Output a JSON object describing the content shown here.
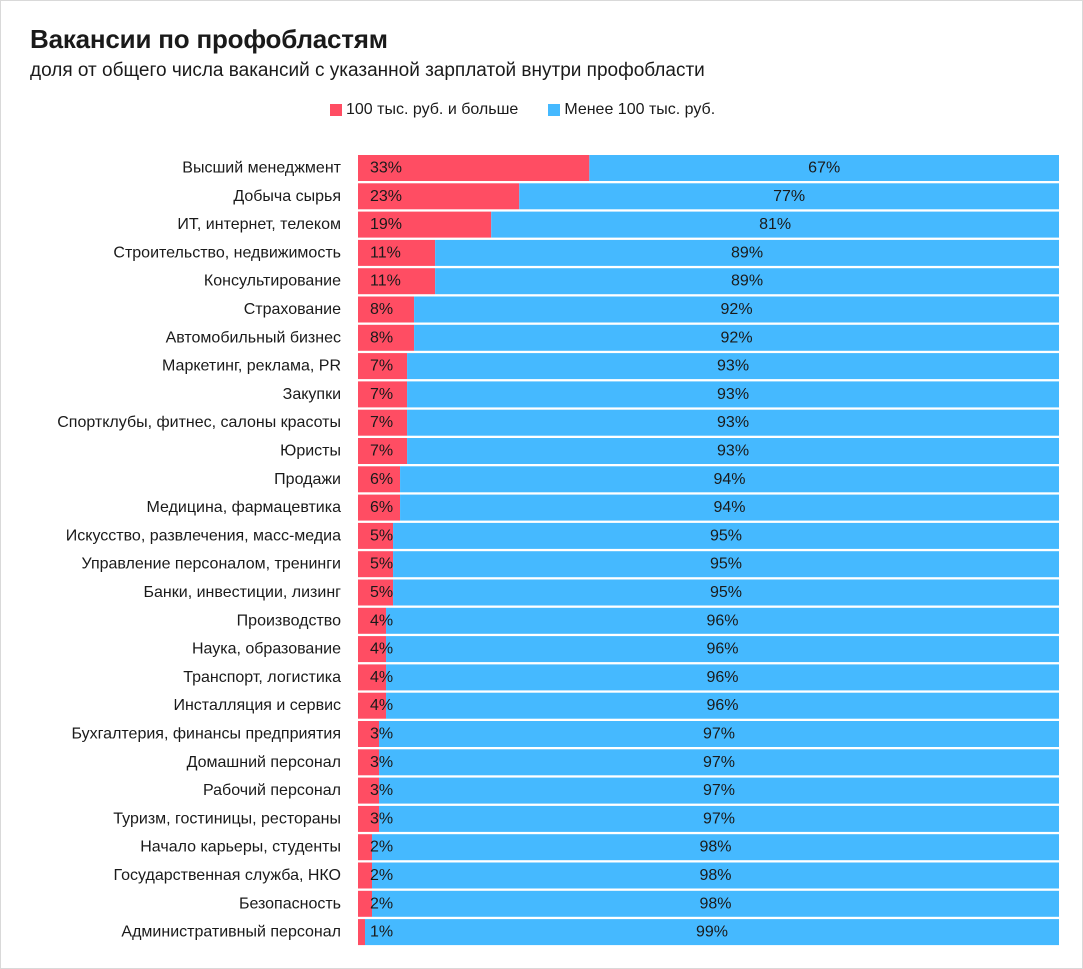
{
  "header": {
    "title": "Вакансии по профобластям",
    "subtitle": "доля от общего числа вакансий с указанной зарплатой внутри профобласти"
  },
  "legend": {
    "items": [
      {
        "label": "100 тыс. руб. и больше",
        "color": "#ff4d63"
      },
      {
        "label": "Менее 100 тыс. руб.",
        "color": "#45b9ff"
      }
    ]
  },
  "chart_data": {
    "type": "bar",
    "orientation": "horizontal",
    "stacked": true,
    "normalized_to": 100,
    "title": "Вакансии по профобластям",
    "subtitle": "доля от общего числа вакансий с указанной зарплатой внутри профобласти",
    "legend_position": "top",
    "grid": false,
    "xlim": [
      0,
      100
    ],
    "categories": [
      "Высший менеджмент",
      "Добыча сырья",
      "ИТ, интернет, телеком",
      "Строительство, недвижимость",
      "Консультирование",
      "Страхование",
      "Автомобильный бизнес",
      "Маркетинг, реклама, PR",
      "Закупки",
      "Спортклубы, фитнес, салоны красоты",
      "Юристы",
      "Продажи",
      "Медицина, фармацевтика",
      "Искусство, развлечения, масс-медиа",
      "Управление персоналом, тренинги",
      "Банки, инвестиции, лизинг",
      "Производство",
      "Наука, образование",
      "Транспорт, логистика",
      "Инсталляция и сервис",
      "Бухгалтерия, финансы предприятия",
      "Домашний персонал",
      "Рабочий персонал",
      "Туризм, гостиницы, рестораны",
      "Начало карьеры, студенты",
      "Государственная служба, НКО",
      "Безопасность",
      "Административный персонал"
    ],
    "series": [
      {
        "name": "100 тыс. руб. и больше",
        "color": "#ff4d63",
        "values": [
          33,
          23,
          19,
          11,
          11,
          8,
          8,
          7,
          7,
          7,
          7,
          6,
          6,
          5,
          5,
          5,
          4,
          4,
          4,
          4,
          3,
          3,
          3,
          3,
          2,
          2,
          2,
          1
        ],
        "labels": [
          "33%",
          "23%",
          "19%",
          "11%",
          "11%",
          "8%",
          "8%",
          "7%",
          "7%",
          "7%",
          "7%",
          "6%",
          "6%",
          "5%",
          "5%",
          "5%",
          "4%",
          "4%",
          "4%",
          "4%",
          "3%",
          "3%",
          "3%",
          "3%",
          "2%",
          "2%",
          "2%",
          "1%"
        ]
      },
      {
        "name": "Менее 100 тыс. руб.",
        "color": "#45b9ff",
        "values": [
          67,
          77,
          81,
          89,
          89,
          92,
          92,
          93,
          93,
          93,
          93,
          94,
          94,
          95,
          95,
          95,
          96,
          96,
          96,
          96,
          97,
          97,
          97,
          97,
          98,
          98,
          98,
          99
        ],
        "labels": [
          "67%",
          "77%",
          "81%",
          "89%",
          "89%",
          "92%",
          "92%",
          "93%",
          "93%",
          "93%",
          "93%",
          "94%",
          "94%",
          "95%",
          "95%",
          "95%",
          "96%",
          "96%",
          "96%",
          "96%",
          "97%",
          "97%",
          "97%",
          "97%",
          "98%",
          "98%",
          "98%",
          "99%"
        ]
      }
    ]
  }
}
